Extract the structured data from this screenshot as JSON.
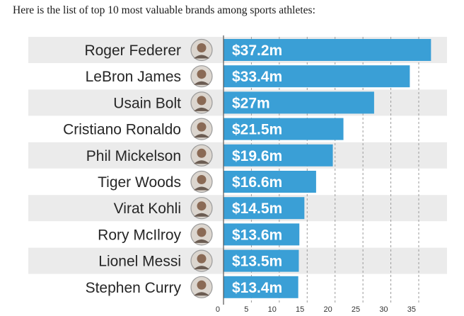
{
  "intro_text": "Here is the list of top 10 most valuable brands among sports athletes:",
  "chart_data": {
    "type": "bar",
    "orientation": "horizontal",
    "title": "",
    "xlabel": "",
    "ylabel": "",
    "xlim": [
      0,
      37.5
    ],
    "grid": true,
    "grid_style": "dashed vertical",
    "categories": [
      "Roger Federer",
      "LeBron James",
      "Usain Bolt",
      "Cristiano Ronaldo",
      "Phil Mickelson",
      "Tiger Woods",
      "Virat Kohli",
      "Rory McIlroy",
      "Lionel Messi",
      "Stephen Curry"
    ],
    "values": [
      37.2,
      33.4,
      27,
      21.5,
      19.6,
      16.6,
      14.5,
      13.6,
      13.5,
      13.4
    ],
    "value_labels": [
      "$37.2m",
      "$33.4m",
      "$27m",
      "$21.5m",
      "$19.6m",
      "$16.6m",
      "$14.5m",
      "$13.6m",
      "$13.5m",
      "$13.4m"
    ],
    "ticks": [
      0,
      5,
      10,
      15,
      20,
      25,
      30,
      35
    ],
    "bar_color": "#3a9fd6",
    "band_color": "#ebebeb",
    "avatar_icon": "athlete-portrait-icon"
  }
}
